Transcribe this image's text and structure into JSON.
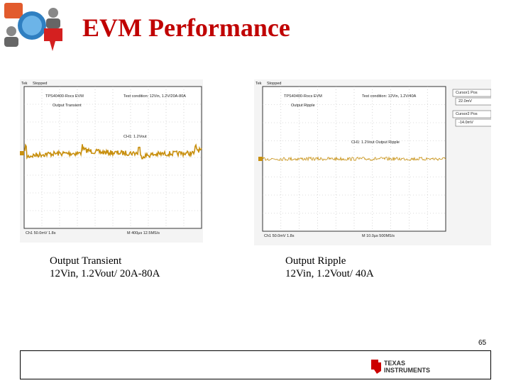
{
  "header": {
    "title": "EVM Performance"
  },
  "panels": [
    {
      "scope": {
        "brand": "Tek",
        "state": "Stopped",
        "board": "TPS40400-Rocs EVM",
        "condition": "Test condition: 12Vin, 1.2V/20A-80A",
        "label": "Output Transient",
        "channel": "CH1: 1.2Vout",
        "scale": "Ch1 50.0mV 1.8s",
        "timebase": "M 400μs 12.5MS/s"
      },
      "caption": [
        "Output Transient",
        "12Vin, 1.2Vout/ 20A-80A"
      ]
    },
    {
      "scope": {
        "brand": "Tek",
        "state": "Stopped",
        "board": "TPS40400-Rocs EVM",
        "condition": "Test condition: 12Vin, 1.2V/40A",
        "label": "Output Ripple",
        "channel": "CH1: 1.2Vout Output Ripple",
        "scale": "Ch1 50.0mV 1.8s",
        "timebase": "M 10.0μs 500MS/s",
        "cursor1": "Cursor1 Pos",
        "cursor1_value": "22.0mV",
        "cursor2": "Cursor2 Pos",
        "cursor2_value": "-14.0mV"
      },
      "caption": [
        "Output Ripple",
        "12Vin, 1.2Vout/ 40A"
      ]
    }
  ],
  "footer": {
    "page": "65",
    "logo": [
      "TEXAS",
      "INSTRUMENTS"
    ]
  }
}
